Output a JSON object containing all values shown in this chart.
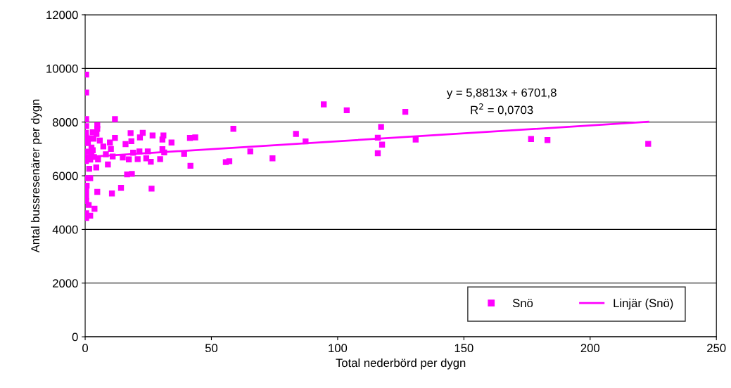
{
  "chart_data": {
    "type": "scatter",
    "xlabel": "Total nederbörd per dygn",
    "ylabel": "Antal bussresenärer per dygn",
    "xlim": [
      0,
      250
    ],
    "xticks": [
      0,
      50,
      100,
      150,
      200,
      250
    ],
    "ylim": [
      0,
      12000
    ],
    "yticks": [
      0,
      2000,
      4000,
      6000,
      8000,
      10000,
      12000
    ],
    "grid": "y",
    "legend": "bottom right",
    "marker": "square",
    "annotations": [
      "y = 5,8813x + 6701,8",
      "R$^{2}$ = 0,0703"
    ],
    "series": [
      {
        "name": "Snö",
        "type": "scatter",
        "color": "#ff00ff",
        "x": [
          0.4,
          0.4,
          0.4,
          11.8,
          0.4,
          4.8,
          4.8,
          3.0,
          4.5,
          18.0,
          22.8,
          26.7,
          31.0,
          11.8,
          21.7,
          30.6,
          18.3,
          34.2,
          3.3,
          5.8,
          9.8,
          16.0,
          7.2,
          10.2,
          19,
          21.5,
          24.8,
          30.6,
          31.3,
          8.2,
          10.9,
          14.9,
          17.3,
          20.8,
          24.2,
          26.0,
          29.7,
          5.1,
          2.5,
          2.5,
          1.1,
          9.0,
          4.4,
          1.6,
          16.6,
          18.5,
          0.4,
          2.0,
          0.6,
          0.4,
          4.8,
          10.6,
          14.2,
          26.3,
          0.4,
          0.4,
          1.4,
          3.7,
          0.4,
          2.0,
          0.4,
          0.3,
          0.3,
          0.3,
          0.3,
          0.3,
          1.0,
          2.0,
          3.0,
          3.5,
          2.5,
          117.2,
          115.9,
          117.6,
          115.9,
          130.9,
          94.5,
          103.6,
          126.8,
          87.3,
          83.5,
          74.2,
          65.4,
          58.7,
          57.1,
          55.7,
          41.7,
          41.5,
          43.6,
          39.2,
          176.6,
          183.1,
          223
        ],
        "values": [
          9770,
          9100,
          8110,
          8110,
          7850,
          7880,
          7750,
          7620,
          7560,
          7590,
          7600,
          7500,
          7500,
          7410,
          7430,
          7350,
          7290,
          7240,
          7380,
          7310,
          7240,
          7180,
          7090,
          7000,
          6860,
          6910,
          6910,
          6990,
          6870,
          6800,
          6720,
          6680,
          6610,
          6620,
          6650,
          6520,
          6620,
          6610,
          6830,
          7050,
          7220,
          6420,
          6310,
          6260,
          6050,
          6070,
          5910,
          5910,
          5630,
          5430,
          5400,
          5340,
          5550,
          5520,
          5210,
          5060,
          4910,
          4770,
          4600,
          4510,
          4430,
          7600,
          7450,
          7300,
          6700,
          6550,
          6900,
          6600,
          6950,
          6700,
          7400,
          7820,
          7420,
          7160,
          6840,
          7350,
          8660,
          8440,
          8380,
          7280,
          7560,
          6650,
          6910,
          7750,
          6540,
          6510,
          6370,
          7410,
          7430,
          6820,
          7370,
          7330,
          7190
        ]
      },
      {
        "name": "Linjär (Snö)",
        "type": "line",
        "color": "#ff00ff",
        "marker": "none",
        "x": [
          0,
          223
        ],
        "values": [
          6700,
          8010
        ]
      }
    ]
  }
}
